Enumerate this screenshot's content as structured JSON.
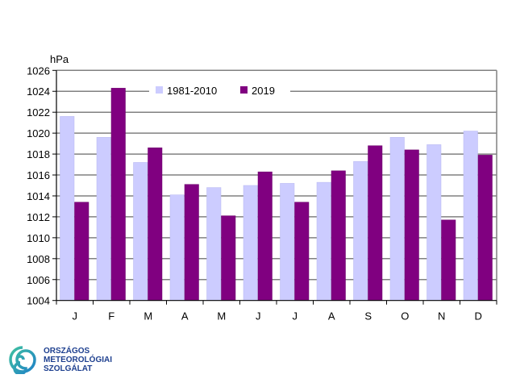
{
  "chart_data": {
    "type": "bar",
    "title": "",
    "xlabel": "",
    "ylabel": "hPa",
    "ylim": [
      1004,
      1026
    ],
    "yticks": [
      "1004",
      "1006",
      "1008",
      "1010",
      "1012",
      "1014",
      "1016",
      "1018",
      "1020",
      "1022",
      "1024",
      "1026"
    ],
    "grid": true,
    "legend_position": "top-center",
    "categories": [
      "J",
      "F",
      "M",
      "A",
      "M",
      "J",
      "J",
      "A",
      "S",
      "O",
      "N",
      "D"
    ],
    "series": [
      {
        "name": "1981-2010",
        "color": "#ccccff",
        "values": [
          1021.6,
          1019.6,
          1017.2,
          1014.1,
          1014.8,
          1015.0,
          1015.2,
          1015.3,
          1017.3,
          1019.6,
          1018.9,
          1020.2
        ]
      },
      {
        "name": "2019",
        "color": "#800080",
        "values": [
          1013.4,
          1024.3,
          1018.6,
          1015.1,
          1012.1,
          1016.3,
          1013.4,
          1016.4,
          1018.8,
          1018.4,
          1011.7,
          1017.9
        ]
      }
    ]
  },
  "logo": {
    "lines": [
      "ORSZÁGOS",
      "METEOROLÓGIAI",
      "SZOLGÁLAT"
    ]
  }
}
